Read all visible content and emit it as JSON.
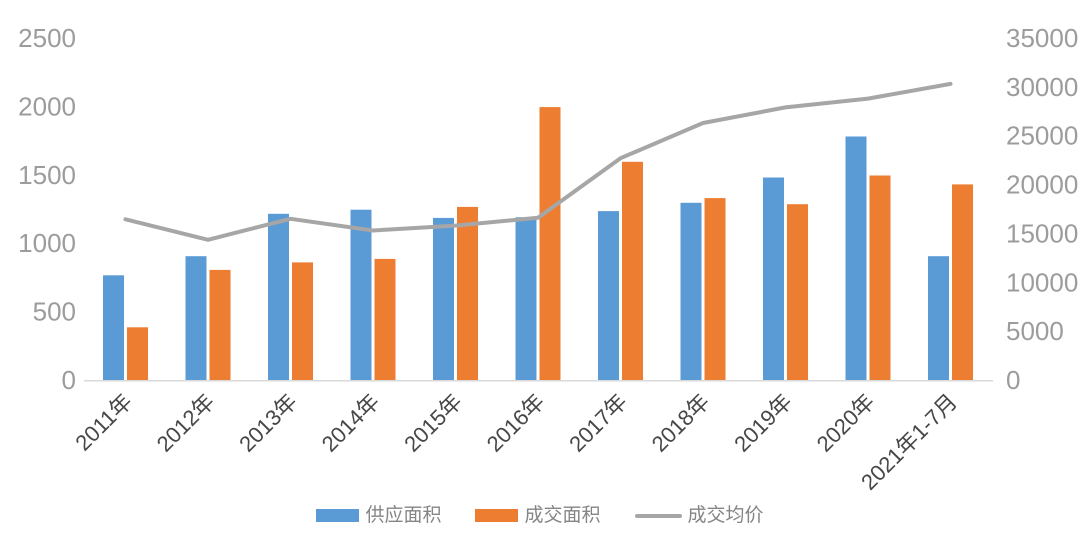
{
  "chart_data": {
    "type": "bar",
    "subtype": "grouped-bars-with-line-combo",
    "title": "",
    "categories": [
      "2011年",
      "2012年",
      "2013年",
      "2014年",
      "2015年",
      "2016年",
      "2017年",
      "2018年",
      "2019年",
      "2020年",
      "2021年1-7月"
    ],
    "series": [
      {
        "name": "供应面积",
        "type": "bar",
        "axis": "left",
        "color": "#5B9BD5",
        "values": [
          765,
          905,
          1215,
          1245,
          1185,
          1190,
          1235,
          1295,
          1480,
          1780,
          905
        ]
      },
      {
        "name": "成交面积",
        "type": "bar",
        "axis": "left",
        "color": "#ED7D31",
        "values": [
          385,
          805,
          860,
          885,
          1265,
          1995,
          1595,
          1330,
          1285,
          1495,
          1430
        ]
      },
      {
        "name": "成交均价",
        "type": "line",
        "axis": "right",
        "color": "#A6A6A6",
        "values": [
          16450,
          14350,
          16500,
          15300,
          15800,
          16600,
          22700,
          26300,
          27900,
          28800,
          30300
        ]
      }
    ],
    "left_axis": {
      "min": 0,
      "max": 2500,
      "step": 500,
      "ticks": [
        0,
        500,
        1000,
        1500,
        2000,
        2500
      ]
    },
    "right_axis": {
      "min": 0,
      "max": 35000,
      "step": 5000,
      "ticks": [
        0,
        5000,
        10000,
        15000,
        20000,
        25000,
        30000,
        35000
      ]
    },
    "grid": false,
    "legend_position": "bottom",
    "x_label_rotation_deg": -45,
    "axis_line_color": "#D9D9D9",
    "y_tick_color": "#9C9C9C",
    "x_tick_color": "#474747",
    "legend_text_color": "#858585"
  }
}
